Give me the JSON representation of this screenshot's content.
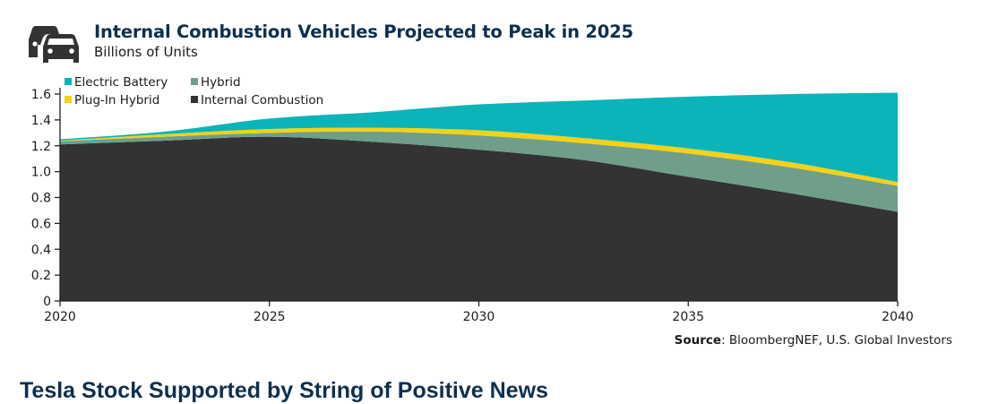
{
  "header": {
    "icon": "cars-icon",
    "title": "Internal Combustion Vehicles Projected to Peak in 2025",
    "subtitle": "Billions of Units"
  },
  "source": {
    "label": "Source",
    "text": ": BloombergNEF, U.S. Global Investors"
  },
  "next_heading": "Tesla Stock Supported by String of Positive News",
  "chart_data": {
    "type": "area",
    "stacked": true,
    "title": "Internal Combustion Vehicles Projected to Peak in 2025",
    "subtitle": "Billions of Units",
    "xlabel": "",
    "ylabel": "Billions of Units",
    "x": [
      2020,
      2022.5,
      2025,
      2027.5,
      2030,
      2032.5,
      2035,
      2037.5,
      2040
    ],
    "xlim": [
      2020,
      2040
    ],
    "ylim": [
      0,
      1.6
    ],
    "xticks": [
      "2020",
      "2025",
      "2030",
      "2035",
      "2040"
    ],
    "xtick_values": [
      2020,
      2025,
      2030,
      2035,
      2040
    ],
    "yticks": [
      "0",
      "0.2",
      "0.4",
      "0.6",
      "0.8",
      "1.0",
      "1.2",
      "1.4",
      "1.6"
    ],
    "ytick_values": [
      0,
      0.2,
      0.4,
      0.6,
      0.8,
      1.0,
      1.2,
      1.4,
      1.6
    ],
    "grid": false,
    "legend_position": "top-left",
    "series": [
      {
        "name": "Internal Combustion",
        "color": "#333333",
        "values": [
          1.21,
          1.24,
          1.27,
          1.23,
          1.17,
          1.09,
          0.96,
          0.83,
          0.69
        ]
      },
      {
        "name": "Hybrid",
        "color": "#6f9f89",
        "values": [
          0.025,
          0.03,
          0.03,
          0.08,
          0.11,
          0.13,
          0.18,
          0.2,
          0.2
        ]
      },
      {
        "name": "Plug-In Hybrid",
        "color": "#f5d117",
        "values": [
          0.005,
          0.02,
          0.03,
          0.03,
          0.04,
          0.04,
          0.04,
          0.04,
          0.03
        ]
      },
      {
        "name": "Electric Battery",
        "color": "#0ab4b8",
        "values": [
          0.01,
          0.02,
          0.08,
          0.12,
          0.2,
          0.29,
          0.4,
          0.53,
          0.69
        ]
      }
    ],
    "legend": [
      {
        "name": "Electric Battery",
        "color": "#0ab4b8"
      },
      {
        "name": "Hybrid",
        "color": "#6f9f89"
      },
      {
        "name": "Plug-In Hybrid",
        "color": "#f5d117"
      },
      {
        "name": "Internal Combustion",
        "color": "#333333"
      }
    ]
  }
}
